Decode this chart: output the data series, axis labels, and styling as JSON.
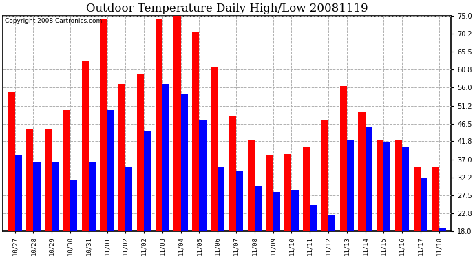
{
  "title": "Outdoor Temperature Daily High/Low 20081119",
  "copyright": "Copyright 2008 Cartronics.com",
  "dates": [
    "10/27",
    "10/28",
    "10/29",
    "10/30",
    "10/31",
    "11/01",
    "11/02",
    "11/02",
    "11/03",
    "11/04",
    "11/05",
    "11/06",
    "11/07",
    "11/08",
    "11/09",
    "11/10",
    "11/11",
    "11/12",
    "11/13",
    "11/14",
    "11/15",
    "11/16",
    "11/17",
    "11/18"
  ],
  "highs": [
    55.0,
    45.0,
    45.0,
    50.0,
    63.0,
    74.0,
    57.0,
    59.5,
    74.0,
    75.0,
    70.5,
    61.5,
    48.5,
    42.0,
    38.0,
    38.5,
    40.5,
    47.5,
    56.5,
    49.5,
    42.0,
    42.0,
    35.0,
    35.0
  ],
  "lows": [
    38.0,
    36.5,
    36.5,
    31.5,
    36.5,
    50.0,
    35.0,
    44.5,
    57.0,
    54.5,
    47.5,
    35.0,
    34.0,
    30.0,
    28.5,
    29.0,
    25.0,
    22.5,
    42.0,
    45.5,
    41.5,
    40.5,
    32.0,
    19.0
  ],
  "high_color": "#ff0000",
  "low_color": "#0000ff",
  "bg_color": "#ffffff",
  "plot_bg_color": "#ffffff",
  "grid_color": "#b0b0b0",
  "ylim_min": 18.0,
  "ylim_max": 75.0,
  "yticks": [
    18.0,
    22.8,
    27.5,
    32.2,
    37.0,
    41.8,
    46.5,
    51.2,
    56.0,
    60.8,
    65.5,
    70.2,
    75.0
  ],
  "title_fontsize": 12,
  "copyright_fontsize": 6.5,
  "bar_width": 0.38
}
